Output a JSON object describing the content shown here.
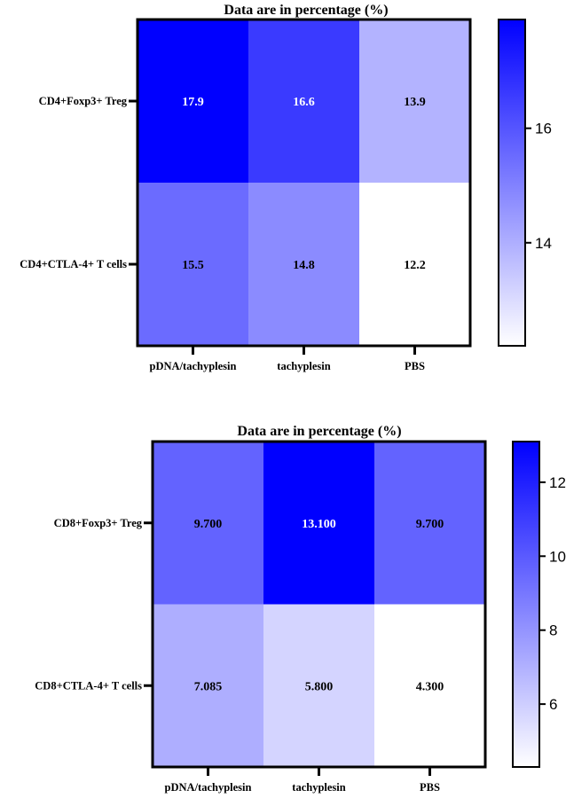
{
  "chart_data": [
    {
      "type": "heatmap",
      "title": "Data are in percentage (%)",
      "columns": [
        "pDNA/tachyplesin",
        "tachyplesin",
        "PBS"
      ],
      "rows": [
        "CD4+Foxp3+ Treg",
        "CD4+CTLA-4+ T cells"
      ],
      "values": [
        [
          17.9,
          16.6,
          13.9
        ],
        [
          15.5,
          14.8,
          12.2
        ]
      ],
      "value_labels": [
        [
          "17.9",
          "16.6",
          "13.9"
        ],
        [
          "15.5",
          "14.8",
          "12.2"
        ]
      ],
      "color_range": [
        12.2,
        17.9
      ],
      "colorbar_ticks": [
        "14",
        "16"
      ],
      "colors": {
        "low": "#ffffff",
        "high": "#0000ff"
      }
    },
    {
      "type": "heatmap",
      "title": "Data are in percentage (%)",
      "columns": [
        "pDNA/tachyplesin",
        "tachyplesin",
        "PBS"
      ],
      "rows": [
        "CD8+Foxp3+ Treg",
        "CD8+CTLA-4+ T cells"
      ],
      "values": [
        [
          9.7,
          13.1,
          9.7
        ],
        [
          7.085,
          5.8,
          4.3
        ]
      ],
      "value_labels": [
        [
          "9.700",
          "13.100",
          "9.700"
        ],
        [
          "7.085",
          "5.800",
          "4.300"
        ]
      ],
      "color_range": [
        4.3,
        13.1
      ],
      "colorbar_ticks": [
        "6",
        "8",
        "10",
        "12"
      ],
      "colors": {
        "low": "#ffffff",
        "high": "#0000ff"
      }
    }
  ]
}
